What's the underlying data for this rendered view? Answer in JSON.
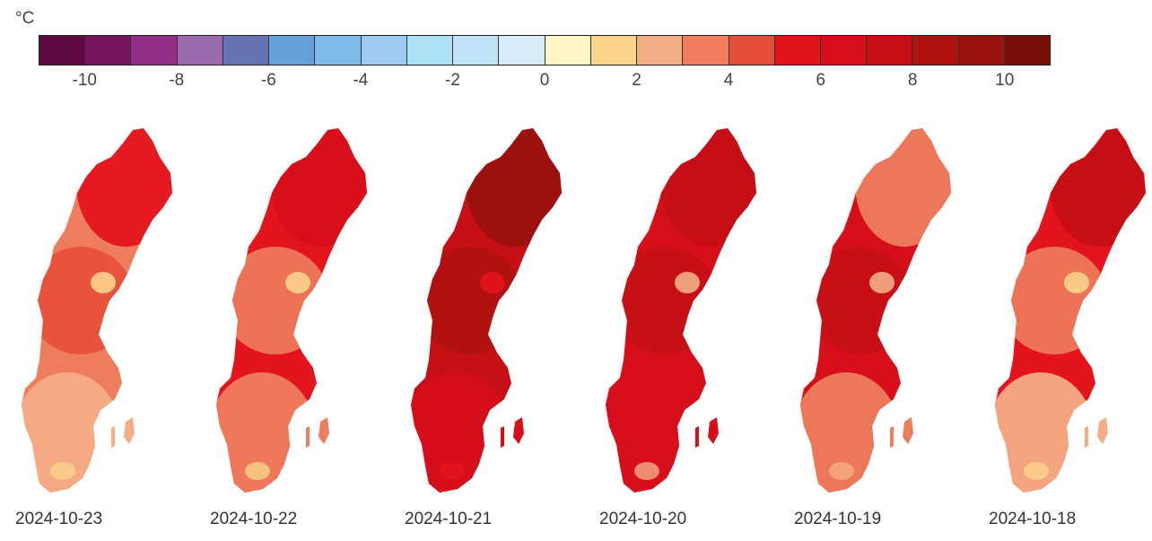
{
  "legend": {
    "unit": "°C",
    "colors": [
      "#5e0a3f",
      "#761660",
      "#932f86",
      "#9a6aac",
      "#6373b4",
      "#64a0d9",
      "#7bbaeb",
      "#9dcbf0",
      "#ade0f7",
      "#bfe4f7",
      "#d8ebf8",
      "#fff6c6",
      "#fbd38b",
      "#f4ad85",
      "#ee7d5d",
      "#e54f38",
      "#e4141c",
      "#d70f1b",
      "#c60f16",
      "#ae1211",
      "#9b110d",
      "#7b0f0a"
    ],
    "ticks": [
      "-10",
      "-8",
      "-6",
      "-4",
      "-2",
      "0",
      "2",
      "4",
      "6",
      "8",
      "10"
    ]
  },
  "maps": [
    {
      "date": "2024-10-23",
      "base": "#ee7d5d",
      "north": "#e4141c",
      "mid": "#e54f38",
      "south": "#f4ad85",
      "patch": "#fbd38b"
    },
    {
      "date": "2024-10-22",
      "base": "#e4141c",
      "north": "#d70f1b",
      "mid": "#ee7d5d",
      "south": "#ee7d5d",
      "patch": "#fbd38b"
    },
    {
      "date": "2024-10-21",
      "base": "#c60f16",
      "north": "#9b110d",
      "mid": "#ae1211",
      "south": "#d70f1b",
      "patch": "#e4141c"
    },
    {
      "date": "2024-10-20",
      "base": "#d70f1b",
      "north": "#c60f16",
      "mid": "#c60f16",
      "south": "#d70f1b",
      "patch": "#f4ad85"
    },
    {
      "date": "2024-10-19",
      "base": "#d70f1b",
      "north": "#ee7d5d",
      "mid": "#c60f16",
      "south": "#ee7d5d",
      "patch": "#f4ad85"
    },
    {
      "date": "2024-10-18",
      "base": "#e4141c",
      "north": "#c60f16",
      "mid": "#ee7d5d",
      "south": "#f4ad85",
      "patch": "#fbd38b"
    }
  ]
}
